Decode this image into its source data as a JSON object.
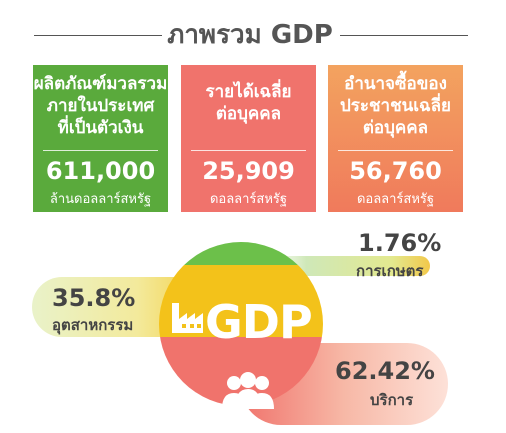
{
  "header": {
    "title": "ภาพรวม GDP"
  },
  "cards": [
    {
      "label_line1": "ผลิตภัณฑ์มวลรวม",
      "label_line2": "ภายในประเทศ",
      "label_line3": "ที่เป็นตัวเงิน",
      "value": "611,000",
      "unit": "ล้านดอลลาร์สหรัฐ",
      "color": "#5aaa3c"
    },
    {
      "label_line1": "รายได้เฉลี่ย",
      "label_line2": "ต่อบุคคล",
      "value": "25,909",
      "unit": "ดอลลาร์สหรัฐ",
      "color": "#f0736c"
    },
    {
      "label_line1": "อำนาจซื้อของ",
      "label_line2": "ประชาชนเฉลี่ย",
      "label_line3": "ต่อบุคคล",
      "value": "56,760",
      "unit": "ดอลลาร์สหรัฐ",
      "color": "#f58a5a"
    }
  ],
  "sectors": {
    "agriculture": {
      "percent": "1.76%",
      "name": "การเกษตร",
      "share": 1.76,
      "color": "#6cc04a"
    },
    "industry": {
      "percent": "35.8%",
      "name": "อุตสาหกรรม",
      "share": 35.8,
      "color": "#f3c21a"
    },
    "services": {
      "percent": "62.42%",
      "name": "บริการ",
      "share": 62.42,
      "color": "#f0736c"
    }
  },
  "center": {
    "label": "GDP",
    "factory_icon": "factory-icon",
    "people_icon": "people-icon"
  }
}
